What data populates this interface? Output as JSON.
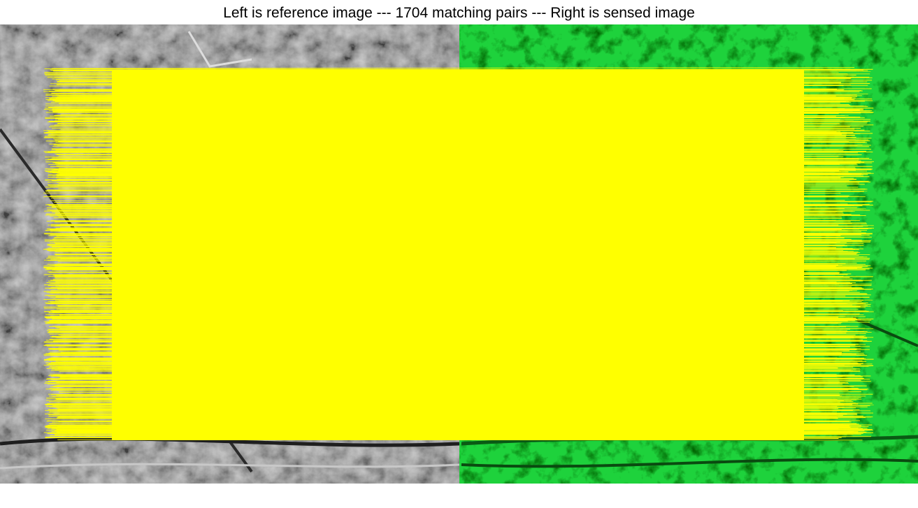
{
  "figure": {
    "title": "Left is reference image --- 1704 matching pairs --- Right is sensed image"
  },
  "panels": {
    "left": {
      "description": "grayscale reference image",
      "tint": "#8c8c8c"
    },
    "right": {
      "description": "green sensed image",
      "tint": "#1ed23c"
    }
  },
  "matches": {
    "count": 1704,
    "line_color": "#ffff00"
  }
}
